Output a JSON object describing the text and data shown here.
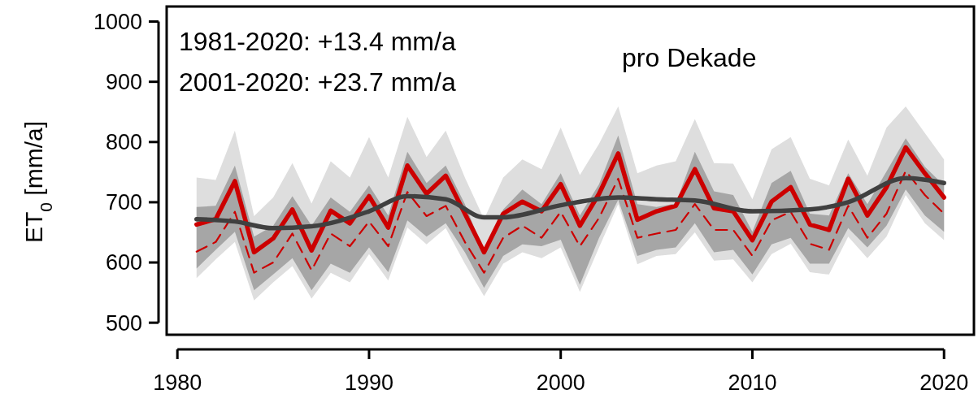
{
  "chart_data": {
    "type": "line",
    "ylabel": "ET$_{0}$ [mm/a]",
    "annotations": [
      "1981-2020: +13.4 mm/a",
      "2001-2020: +23.7 mm/a",
      "pro Dekade"
    ],
    "x": [
      1981,
      1982,
      1983,
      1984,
      1985,
      1986,
      1987,
      1988,
      1989,
      1990,
      1991,
      1992,
      1993,
      1994,
      1995,
      1996,
      1997,
      1998,
      1999,
      2000,
      2001,
      2002,
      2003,
      2004,
      2005,
      2006,
      2007,
      2008,
      2009,
      2010,
      2011,
      2012,
      2013,
      2014,
      2015,
      2016,
      2017,
      2018,
      2019,
      2020
    ],
    "xlim": [
      1979.44,
      2021.56
    ],
    "ylim": [
      480,
      1025
    ],
    "xticks": [
      1980,
      1990,
      2000,
      2010,
      2020
    ],
    "yticks": [
      500,
      600,
      700,
      800,
      900,
      1000
    ],
    "series": [
      {
        "color": "#cc0000",
        "line_style": "dashed",
        "values": [
          618,
          634,
          684,
          583,
          600,
          648,
          587,
          648,
          627,
          668,
          627,
          717,
          677,
          694,
          634,
          583,
          641,
          661,
          641,
          684,
          627,
          674,
          739,
          641,
          648,
          654,
          697,
          654,
          654,
          611,
          670,
          684,
          631,
          621,
          694,
          641,
          681,
          752,
          712,
          681
        ],
        "lower": [
          574,
          605,
          634,
          537,
          567,
          594,
          540,
          583,
          567,
          614,
          570,
          658,
          630,
          657,
          598,
          544,
          598,
          617,
          607,
          625,
          551,
          625,
          697,
          597,
          611,
          614,
          650,
          603,
          605,
          567,
          614,
          631,
          584,
          580,
          643,
          607,
          643,
          712,
          665,
          637
        ],
        "upper": [
          741,
          737,
          819,
          677,
          708,
          765,
          698,
          768,
          741,
          808,
          741,
          842,
          775,
          819,
          741,
          672,
          741,
          771,
          755,
          824,
          745,
          797,
          859,
          748,
          761,
          768,
          838,
          765,
          764,
          705,
          788,
          808,
          739,
          728,
          804,
          744,
          824,
          859,
          815,
          771
        ]
      },
      {
        "color": "#cc0000",
        "line_style": "solid",
        "values": [
          663,
          672,
          735,
          617,
          640,
          688,
          620,
          686,
          665,
          710,
          658,
          761,
          714,
          744,
          681,
          617,
          681,
          701,
          685,
          730,
          661,
          714,
          781,
          671,
          685,
          694,
          755,
          690,
          685,
          637,
          701,
          725,
          663,
          654,
          739,
          678,
          725,
          791,
          748,
          708
        ],
        "lower": [
          590,
          621,
          651,
          554,
          580,
          607,
          554,
          598,
          583,
          625,
          584,
          670,
          643,
          665,
          617,
          558,
          611,
          630,
          627,
          638,
          563,
          641,
          704,
          611,
          621,
          625,
          665,
          617,
          621,
          580,
          630,
          641,
          598,
          598,
          657,
          625,
          661,
          721,
          678,
          651
        ],
        "upper": [
          692,
          694,
          761,
          643,
          661,
          710,
          661,
          708,
          684,
          728,
          678,
          784,
          732,
          761,
          697,
          617,
          688,
          721,
          697,
          748,
          678,
          730,
          811,
          697,
          692,
          698,
          784,
          718,
          712,
          651,
          732,
          752,
          681,
          678,
          748,
          697,
          751,
          806,
          759,
          728
        ]
      },
      {
        "color": "#404040",
        "line_style": "solid",
        "x": [
          1981,
          1983,
          1985,
          1987,
          1990,
          1992,
          1994,
          1996,
          1997,
          2000,
          2003,
          2005,
          2007,
          2010,
          2013,
          2015,
          2018,
          2020
        ],
        "values": [
          672,
          668,
          657,
          660,
          685,
          710,
          705,
          675,
          675,
          695,
          708,
          705,
          703,
          685,
          688,
          700,
          740,
          732
        ]
      }
    ]
  }
}
